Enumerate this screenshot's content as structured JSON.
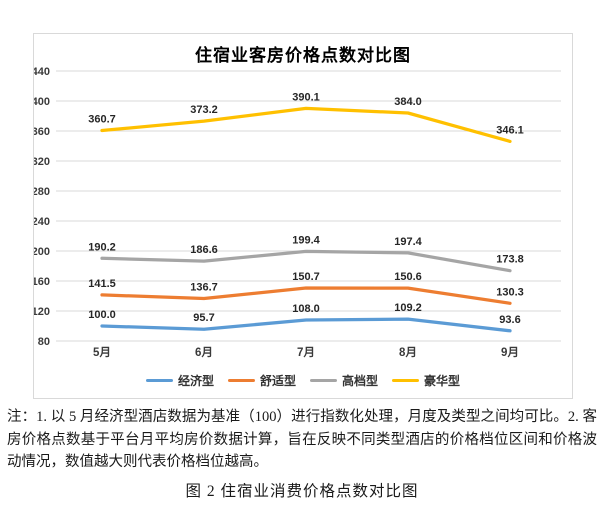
{
  "figure": {
    "notes": "注：1. 以 5 月经济型酒店数据为基准（100）进行指数化处理，月度及类型之间均可比。2. 客房价格点数基于平台月平均房价数据计算，旨在反映不同类型酒店的价格档位区间和价格波动情况，数值越大则代表价格档位越高。",
    "caption": "图 2 住宿业消费价格点数对比图",
    "colors": {
      "grid": "#D9D9D9",
      "chart_border": "#D9D9D9",
      "tick_text": "#3a3a3a",
      "data_label_text": "#262626",
      "title_text": "#000000"
    }
  },
  "chart_data": {
    "type": "line",
    "title": "住宿业客房价格点数对比图",
    "categories": [
      "5月",
      "6月",
      "7月",
      "8月",
      "9月"
    ],
    "series": [
      {
        "name": "经济型",
        "key": "economy",
        "color": "#5B9BD5",
        "values": [
          100.0,
          95.7,
          108.0,
          109.2,
          93.6
        ]
      },
      {
        "name": "舒适型",
        "key": "comfort",
        "color": "#ED7D31",
        "values": [
          141.5,
          136.7,
          150.7,
          150.6,
          130.3
        ]
      },
      {
        "name": "高档型",
        "key": "highend",
        "color": "#A5A5A5",
        "values": [
          190.2,
          186.6,
          199.4,
          197.4,
          173.8
        ]
      },
      {
        "name": "豪华型",
        "key": "luxury",
        "color": "#FFC000",
        "values": [
          360.7,
          373.2,
          390.1,
          384.0,
          346.1
        ]
      }
    ],
    "xlabel": "",
    "ylabel": "",
    "ylim": [
      80,
      440
    ],
    "y_step": 40,
    "grid": true,
    "data_labels": true,
    "data_label_format": "0.1f",
    "legend_position": "bottom"
  }
}
